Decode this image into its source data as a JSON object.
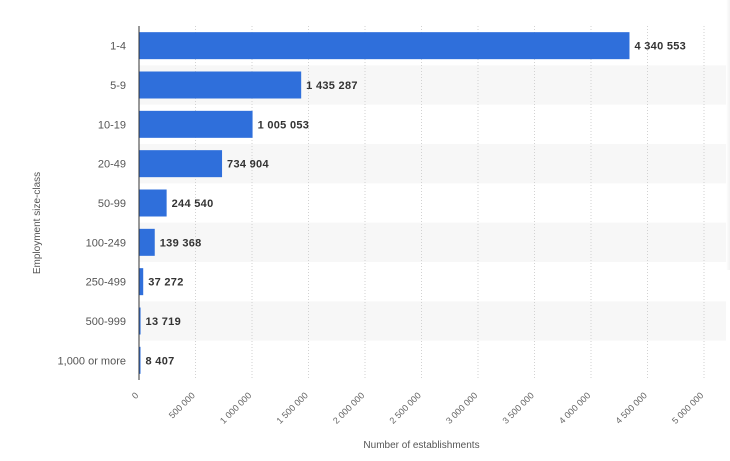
{
  "chart_data": {
    "type": "bar",
    "orientation": "horizontal",
    "categories": [
      "1-4",
      "5-9",
      "10-19",
      "20-49",
      "50-99",
      "100-249",
      "250-499",
      "500-999",
      "1,000 or more"
    ],
    "values": [
      4340553,
      1435287,
      1005053,
      734904,
      244540,
      139368,
      37272,
      13719,
      8407
    ],
    "value_labels": [
      "4 340 553",
      "1 435 287",
      "1 005 053",
      "734 904",
      "244 540",
      "139 368",
      "37 272",
      "13 719",
      "8 407"
    ],
    "xlabel": "Number of establishments",
    "ylabel": "Employment size-class",
    "xlim": [
      0,
      5000000
    ],
    "x_ticks": [
      0,
      500000,
      1000000,
      1500000,
      2000000,
      2500000,
      3000000,
      3500000,
      4000000,
      4500000,
      5000000
    ],
    "x_tick_labels": [
      "0",
      "500 000",
      "1 000 000",
      "1 500 000",
      "2 000 000",
      "2 500 000",
      "3 000 000",
      "3 500 000",
      "4 000 000",
      "4 500 000",
      "5 000 000"
    ],
    "grid": true,
    "bar_color": "#2f6fdb",
    "band_color": "#f7f7f7"
  }
}
